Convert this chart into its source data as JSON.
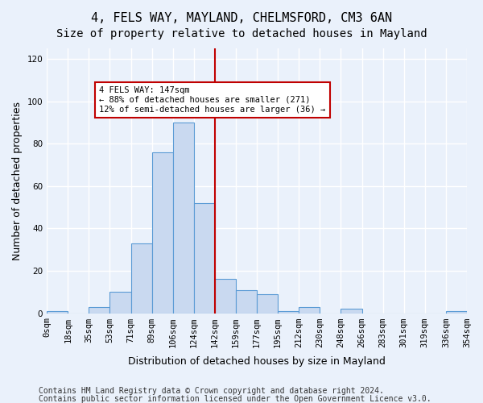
{
  "title1": "4, FELS WAY, MAYLAND, CHELMSFORD, CM3 6AN",
  "title2": "Size of property relative to detached houses in Mayland",
  "xlabel": "Distribution of detached houses by size in Mayland",
  "ylabel": "Number of detached properties",
  "bin_labels": [
    "0sqm",
    "18sqm",
    "35sqm",
    "53sqm",
    "71sqm",
    "89sqm",
    "106sqm",
    "124sqm",
    "142sqm",
    "159sqm",
    "177sqm",
    "195sqm",
    "212sqm",
    "230sqm",
    "248sqm",
    "266sqm",
    "283sqm",
    "301sqm",
    "319sqm",
    "336sqm",
    "354sqm"
  ],
  "bar_values": [
    1,
    0,
    3,
    10,
    33,
    76,
    90,
    52,
    16,
    11,
    9,
    1,
    3,
    0,
    2,
    0,
    0,
    0,
    0,
    1
  ],
  "bar_color": "#c9d9f0",
  "bar_edge_color": "#5b9bd5",
  "vline_x": 8,
  "vline_color": "#c00000",
  "annotation_text": "4 FELS WAY: 147sqm\n← 88% of detached houses are smaller (271)\n12% of semi-detached houses are larger (36) →",
  "annotation_box_edge": "#c00000",
  "ylim": [
    0,
    125
  ],
  "yticks": [
    0,
    20,
    40,
    60,
    80,
    100,
    120
  ],
  "footer1": "Contains HM Land Registry data © Crown copyright and database right 2024.",
  "footer2": "Contains public sector information licensed under the Open Government Licence v3.0.",
  "bg_color": "#eaf1fb",
  "plot_bg_color": "#eaf1fb",
  "grid_color": "#ffffff",
  "title1_fontsize": 11,
  "title2_fontsize": 10,
  "axis_label_fontsize": 9,
  "tick_fontsize": 7.5,
  "footer_fontsize": 7
}
